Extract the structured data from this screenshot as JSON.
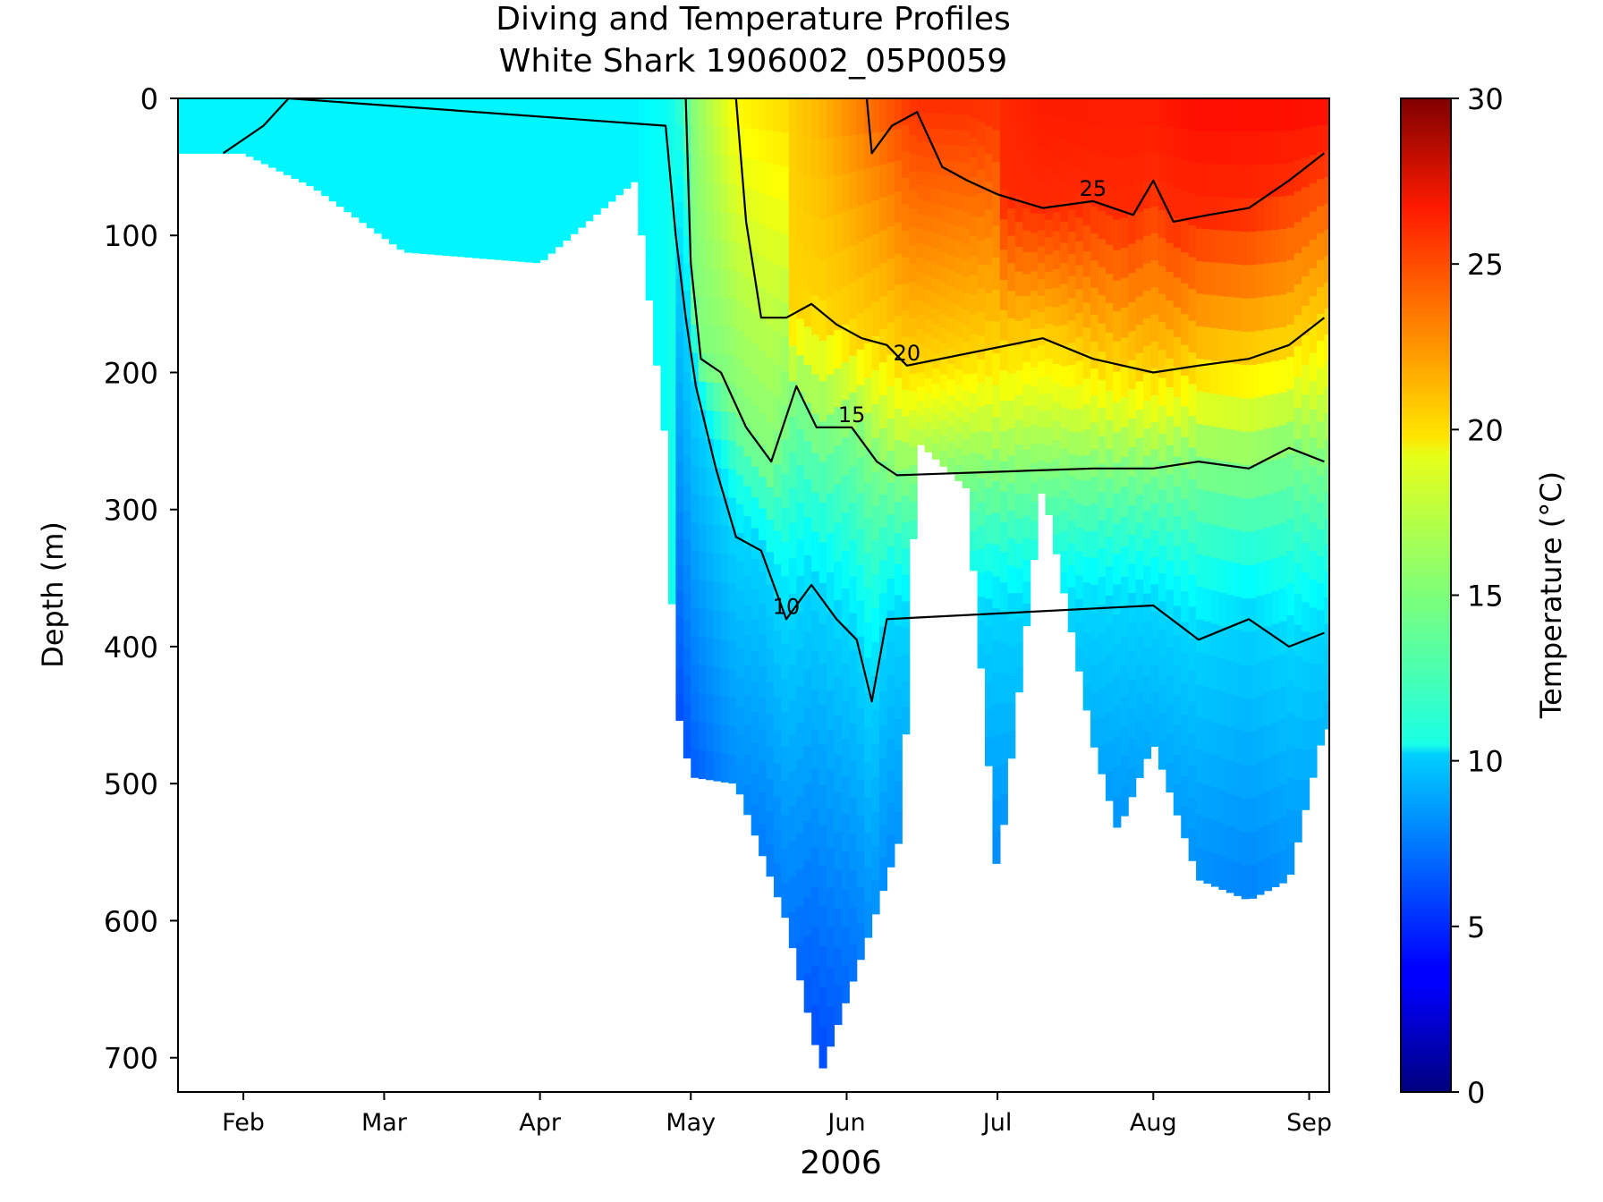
{
  "chart_data": {
    "type": "heatmap",
    "title": "Diving and Temperature Profiles",
    "subtitle": "White Shark 1906002_05P0059",
    "xlabel": "2006",
    "ylabel": "Depth (m)",
    "colorbar_label": "Temperature (°C)",
    "colormap": "jet",
    "x_range": [
      "2006-01-19",
      "2006-09-05"
    ],
    "x_tick_labels": [
      {
        "label": "Feb",
        "date": "2006-02-01"
      },
      {
        "label": "Mar",
        "date": "2006-03-01"
      },
      {
        "label": "Apr",
        "date": "2006-04-01"
      },
      {
        "label": "May",
        "date": "2006-05-01"
      },
      {
        "label": "Jun",
        "date": "2006-06-01"
      },
      {
        "label": "Jul",
        "date": "2006-07-01"
      },
      {
        "label": "Aug",
        "date": "2006-08-01"
      },
      {
        "label": "Sep",
        "date": "2006-09-01"
      }
    ],
    "y_ticks": [
      0,
      100,
      200,
      300,
      400,
      500,
      600,
      700
    ],
    "y_range": [
      0,
      725
    ],
    "y_inverted": true,
    "colorbar_ticks": [
      0,
      5,
      10,
      15,
      20,
      25,
      30
    ],
    "colorbar_range": [
      0,
      30
    ],
    "grid": false,
    "max_depth_profile": [
      {
        "date": "2006-01-19",
        "max_depth_m": 40,
        "surface_temp_c": 11.0
      },
      {
        "date": "2006-02-01",
        "max_depth_m": 40,
        "surface_temp_c": 11.0
      },
      {
        "date": "2006-02-15",
        "max_depth_m": 65,
        "surface_temp_c": 11.0
      },
      {
        "date": "2006-03-05",
        "max_depth_m": 112,
        "surface_temp_c": 11.0
      },
      {
        "date": "2006-04-01",
        "max_depth_m": 120,
        "surface_temp_c": 11.0
      },
      {
        "date": "2006-04-20",
        "max_depth_m": 60,
        "surface_temp_c": 11.0
      },
      {
        "date": "2006-04-26",
        "max_depth_m": 250,
        "surface_temp_c": 11.5
      },
      {
        "date": "2006-04-28",
        "max_depth_m": 440,
        "surface_temp_c": 12.0
      },
      {
        "date": "2006-05-01",
        "max_depth_m": 495,
        "surface_temp_c": 15.0
      },
      {
        "date": "2006-05-10",
        "max_depth_m": 500,
        "surface_temp_c": 19.0
      },
      {
        "date": "2006-05-20",
        "max_depth_m": 600,
        "surface_temp_c": 20.0
      },
      {
        "date": "2006-05-27",
        "max_depth_m": 710,
        "surface_temp_c": 21.0
      },
      {
        "date": "2006-06-05",
        "max_depth_m": 615,
        "surface_temp_c": 23.0
      },
      {
        "date": "2006-06-12",
        "max_depth_m": 535,
        "surface_temp_c": 24.5
      },
      {
        "date": "2006-06-15",
        "max_depth_m": 250,
        "surface_temp_c": 25.0
      },
      {
        "date": "2006-06-25",
        "max_depth_m": 285,
        "surface_temp_c": 25.0
      },
      {
        "date": "2006-07-01",
        "max_depth_m": 570,
        "surface_temp_c": 25.0
      },
      {
        "date": "2006-07-10",
        "max_depth_m": 280,
        "surface_temp_c": 25.5
      },
      {
        "date": "2006-07-20",
        "max_depth_m": 470,
        "surface_temp_c": 25.5
      },
      {
        "date": "2006-07-25",
        "max_depth_m": 535,
        "surface_temp_c": 25.5
      },
      {
        "date": "2006-08-01",
        "max_depth_m": 470,
        "surface_temp_c": 25.5
      },
      {
        "date": "2006-08-10",
        "max_depth_m": 570,
        "surface_temp_c": 26.0
      },
      {
        "date": "2006-08-20",
        "max_depth_m": 585,
        "surface_temp_c": 26.0
      },
      {
        "date": "2006-08-28",
        "max_depth_m": 570,
        "surface_temp_c": 26.0
      },
      {
        "date": "2006-09-04",
        "max_depth_m": 460,
        "surface_temp_c": 26.0
      }
    ],
    "isotherms": [
      {
        "label": "10",
        "temp_c": 10,
        "points": [
          {
            "date": "2006-01-28",
            "depth_m": 40
          },
          {
            "date": "2006-02-05",
            "depth_m": 20
          },
          {
            "date": "2006-02-10",
            "depth_m": 0
          },
          {
            "date": "2006-04-26",
            "depth_m": 20
          },
          {
            "date": "2006-04-28",
            "depth_m": 100
          },
          {
            "date": "2006-04-30",
            "depth_m": 160
          },
          {
            "date": "2006-05-02",
            "depth_m": 210
          },
          {
            "date": "2006-05-06",
            "depth_m": 270
          },
          {
            "date": "2006-05-10",
            "depth_m": 320
          },
          {
            "date": "2006-05-15",
            "depth_m": 330
          },
          {
            "date": "2006-05-20",
            "depth_m": 380
          },
          {
            "date": "2006-05-25",
            "depth_m": 355
          },
          {
            "date": "2006-05-30",
            "depth_m": 380
          },
          {
            "date": "2006-06-03",
            "depth_m": 395
          },
          {
            "date": "2006-06-06",
            "depth_m": 440
          },
          {
            "date": "2006-06-09",
            "depth_m": 380
          },
          {
            "date": "2006-08-01",
            "depth_m": 370
          },
          {
            "date": "2006-08-10",
            "depth_m": 395
          },
          {
            "date": "2006-08-20",
            "depth_m": 380
          },
          {
            "date": "2006-08-28",
            "depth_m": 400
          },
          {
            "date": "2006-09-04",
            "depth_m": 390
          }
        ]
      },
      {
        "label": "15",
        "temp_c": 15,
        "points": [
          {
            "date": "2006-04-30",
            "depth_m": 0
          },
          {
            "date": "2006-05-01",
            "depth_m": 120
          },
          {
            "date": "2006-05-03",
            "depth_m": 190
          },
          {
            "date": "2006-05-07",
            "depth_m": 200
          },
          {
            "date": "2006-05-12",
            "depth_m": 240
          },
          {
            "date": "2006-05-17",
            "depth_m": 265
          },
          {
            "date": "2006-05-22",
            "depth_m": 210
          },
          {
            "date": "2006-05-26",
            "depth_m": 240
          },
          {
            "date": "2006-06-02",
            "depth_m": 240
          },
          {
            "date": "2006-06-07",
            "depth_m": 265
          },
          {
            "date": "2006-06-11",
            "depth_m": 275
          },
          {
            "date": "2006-07-20",
            "depth_m": 270
          },
          {
            "date": "2006-08-01",
            "depth_m": 270
          },
          {
            "date": "2006-08-10",
            "depth_m": 265
          },
          {
            "date": "2006-08-20",
            "depth_m": 270
          },
          {
            "date": "2006-08-28",
            "depth_m": 255
          },
          {
            "date": "2006-09-04",
            "depth_m": 265
          }
        ]
      },
      {
        "label": "20",
        "temp_c": 20,
        "points": [
          {
            "date": "2006-05-10",
            "depth_m": 0
          },
          {
            "date": "2006-05-12",
            "depth_m": 90
          },
          {
            "date": "2006-05-15",
            "depth_m": 160
          },
          {
            "date": "2006-05-20",
            "depth_m": 160
          },
          {
            "date": "2006-05-25",
            "depth_m": 150
          },
          {
            "date": "2006-05-30",
            "depth_m": 165
          },
          {
            "date": "2006-06-04",
            "depth_m": 175
          },
          {
            "date": "2006-06-09",
            "depth_m": 180
          },
          {
            "date": "2006-06-13",
            "depth_m": 195
          },
          {
            "date": "2006-07-10",
            "depth_m": 175
          },
          {
            "date": "2006-07-20",
            "depth_m": 190
          },
          {
            "date": "2006-08-01",
            "depth_m": 200
          },
          {
            "date": "2006-08-10",
            "depth_m": 195
          },
          {
            "date": "2006-08-20",
            "depth_m": 190
          },
          {
            "date": "2006-08-28",
            "depth_m": 180
          },
          {
            "date": "2006-09-04",
            "depth_m": 160
          }
        ]
      },
      {
        "label": "25",
        "temp_c": 25,
        "points": [
          {
            "date": "2006-06-05",
            "depth_m": 0
          },
          {
            "date": "2006-06-06",
            "depth_m": 40
          },
          {
            "date": "2006-06-10",
            "depth_m": 20
          },
          {
            "date": "2006-06-15",
            "depth_m": 10
          },
          {
            "date": "2006-06-20",
            "depth_m": 50
          },
          {
            "date": "2006-06-25",
            "depth_m": 60
          },
          {
            "date": "2006-07-01",
            "depth_m": 70
          },
          {
            "date": "2006-07-10",
            "depth_m": 80
          },
          {
            "date": "2006-07-20",
            "depth_m": 75
          },
          {
            "date": "2006-07-28",
            "depth_m": 85
          },
          {
            "date": "2006-08-01",
            "depth_m": 60
          },
          {
            "date": "2006-08-05",
            "depth_m": 90
          },
          {
            "date": "2006-08-12",
            "depth_m": 85
          },
          {
            "date": "2006-08-20",
            "depth_m": 80
          },
          {
            "date": "2006-08-28",
            "depth_m": 60
          },
          {
            "date": "2006-09-04",
            "depth_m": 40
          }
        ]
      }
    ]
  }
}
